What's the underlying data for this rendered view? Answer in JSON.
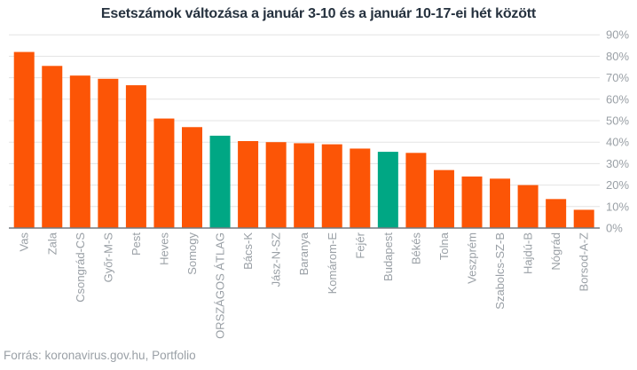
{
  "chart_data": {
    "type": "bar",
    "title": "Esetszámok változása a január 3-10 és a január 10-17-ei hét között",
    "categories": [
      "Vas",
      "Zala",
      "Csongrád-CS",
      "Győr-M-S",
      "Pest",
      "Heves",
      "Somogy",
      "ORSZÁGOS ÁTLAG",
      "Bács-K",
      "Jász-N-SZ",
      "Baranya",
      "Komárom-E",
      "Fejér",
      "Budapest",
      "Békés",
      "Tolna",
      "Veszprém",
      "Szabolcs-SZ-B",
      "Hajdú-B",
      "Nógrád",
      "Borsod-A-Z"
    ],
    "values": [
      82,
      75.5,
      71,
      69.5,
      66.5,
      51,
      47,
      43,
      40.5,
      40,
      39.5,
      39,
      37,
      35.5,
      35,
      27,
      24,
      23,
      20,
      13.5,
      8.5
    ],
    "highlighted_categories": [
      "ORSZÁGOS ÁTLAG",
      "Budapest"
    ],
    "xlabel": "",
    "ylabel": "",
    "ylim": [
      0,
      90
    ],
    "ytick_step": 10,
    "ytick_suffix": "%",
    "yaxis_position": "right",
    "grid": true,
    "legend": "none",
    "source": "Forrás: koronavirus.gov.hu, Portfolio"
  },
  "colors": {
    "bar": "#fc5506",
    "highlight": "#00a784",
    "title": "#26323f",
    "axis_label": "#9aa0a6",
    "gridline": "#e3e3e3",
    "axis_line": "#737a80",
    "background": "#ffffff"
  }
}
